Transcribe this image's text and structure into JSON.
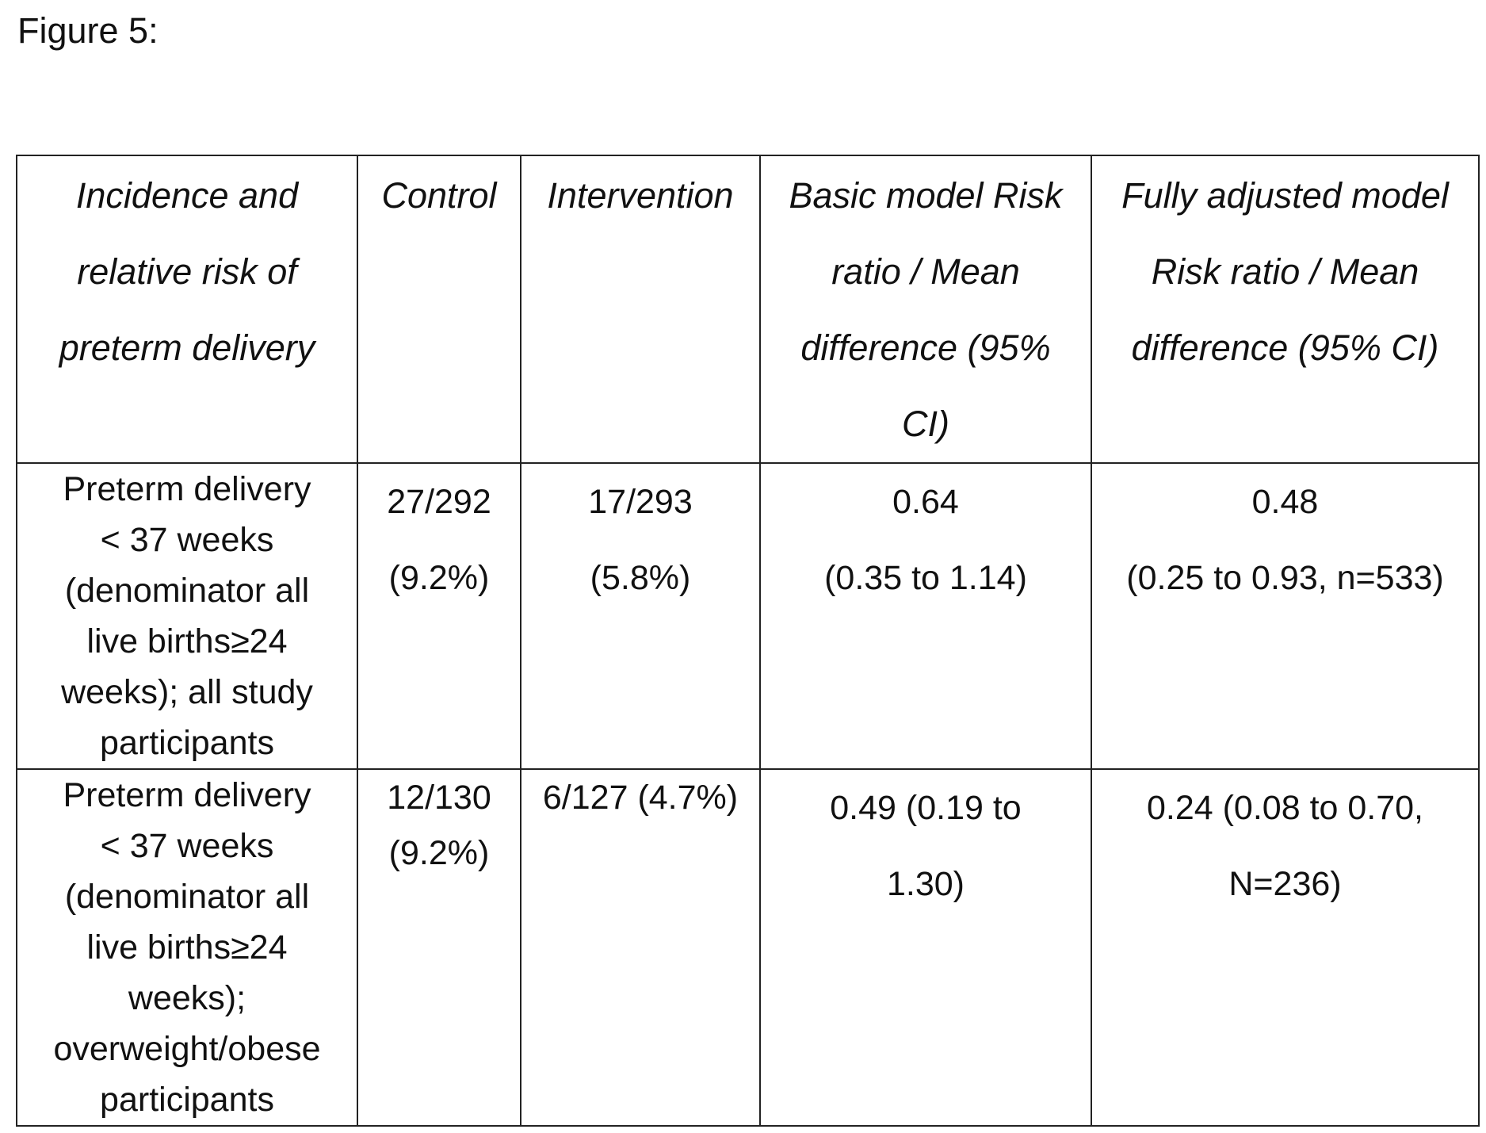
{
  "figure": {
    "label": "Figure 5:"
  },
  "table": {
    "headers": [
      [
        "Incidence and",
        "relative risk of",
        "preterm delivery"
      ],
      [
        "Control"
      ],
      [
        "Intervention"
      ],
      [
        "Basic model Risk",
        "ratio / Mean",
        "difference (95%",
        "CI)"
      ],
      [
        "Fully adjusted model",
        "Risk ratio / Mean",
        "difference (95% CI)"
      ]
    ],
    "rows": [
      {
        "label": [
          "Preterm delivery",
          "< 37 weeks",
          "(denominator all",
          "live births≥24",
          "weeks); all study",
          "participants"
        ],
        "control": [
          "27/292",
          "(9.2%)"
        ],
        "intervention": [
          "17/293",
          "(5.8%)"
        ],
        "basic": [
          "0.64",
          "(0.35 to 1.14)"
        ],
        "adjusted": [
          "0.48",
          "(0.25 to 0.93, n=533)"
        ]
      },
      {
        "label": [
          "Preterm delivery",
          "< 37 weeks",
          "(denominator all",
          "live births≥24",
          "weeks);",
          "overweight/obese",
          "participants"
        ],
        "control": [
          "12/130",
          "(9.2%)"
        ],
        "intervention": [
          "6/127 (4.7%)"
        ],
        "basic": [
          "0.49 (0.19 to",
          "1.30)"
        ],
        "adjusted": [
          "0.24 (0.08 to 0.70,",
          "N=236)"
        ]
      }
    ]
  }
}
